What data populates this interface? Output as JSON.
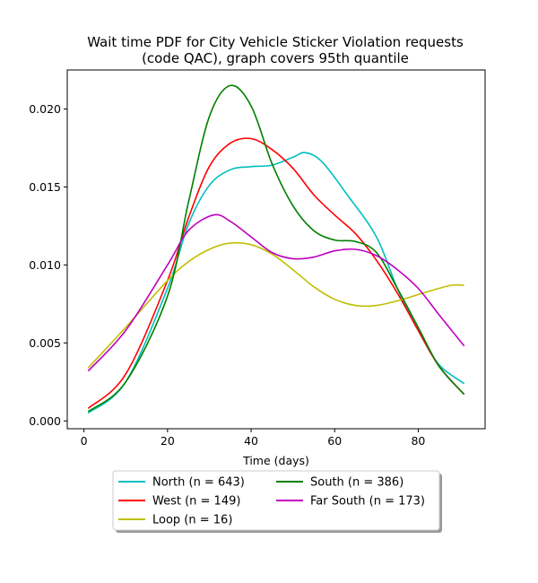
{
  "chart_data": {
    "type": "line",
    "title_line1": "Wait time PDF for City Vehicle Sticker Violation  requests",
    "title_line2": "(code QAC), graph covers 95th quantile",
    "xlabel": "Time (days)",
    "ylabel": "",
    "xlim": [
      -4,
      96
    ],
    "ylim": [
      -0.0005,
      0.0225
    ],
    "xticks": [
      0,
      20,
      40,
      60,
      80
    ],
    "yticks": [
      0.0,
      0.005,
      0.01,
      0.015,
      0.02
    ],
    "ytick_labels": [
      "0.000",
      "0.005",
      "0.010",
      "0.015",
      "0.020"
    ],
    "grid": false,
    "legend_position": "bottom",
    "series": [
      {
        "name": "North (n = 643)",
        "color": "#00bfbf",
        "points": [
          [
            1,
            0.0005
          ],
          [
            10,
            0.0025
          ],
          [
            20,
            0.0085
          ],
          [
            25,
            0.0126
          ],
          [
            30,
            0.0151
          ],
          [
            35,
            0.0161
          ],
          [
            40,
            0.0163
          ],
          [
            45,
            0.0164
          ],
          [
            50,
            0.0169
          ],
          [
            53,
            0.0172
          ],
          [
            57,
            0.0166
          ],
          [
            63,
            0.0145
          ],
          [
            70,
            0.0118
          ],
          [
            75,
            0.0085
          ],
          [
            80,
            0.0058
          ],
          [
            85,
            0.0036
          ],
          [
            91,
            0.0024
          ]
        ]
      },
      {
        "name": "West (n = 149)",
        "color": "#ff0000",
        "points": [
          [
            1,
            0.0008
          ],
          [
            10,
            0.003
          ],
          [
            20,
            0.009
          ],
          [
            25,
            0.013
          ],
          [
            30,
            0.0163
          ],
          [
            35,
            0.0178
          ],
          [
            40,
            0.0181
          ],
          [
            45,
            0.0174
          ],
          [
            50,
            0.0162
          ],
          [
            55,
            0.0145
          ],
          [
            60,
            0.0132
          ],
          [
            65,
            0.012
          ],
          [
            70,
            0.0103
          ],
          [
            75,
            0.0082
          ],
          [
            80,
            0.0058
          ],
          [
            85,
            0.0035
          ],
          [
            91,
            0.0017
          ]
        ]
      },
      {
        "name": "Loop (n = 16)",
        "color": "#bfbf00",
        "points": [
          [
            1,
            0.0034
          ],
          [
            10,
            0.006
          ],
          [
            20,
            0.009
          ],
          [
            25,
            0.0102
          ],
          [
            30,
            0.011
          ],
          [
            35,
            0.0114
          ],
          [
            40,
            0.0113
          ],
          [
            45,
            0.0107
          ],
          [
            50,
            0.0097
          ],
          [
            55,
            0.0086
          ],
          [
            60,
            0.0078
          ],
          [
            65,
            0.0074
          ],
          [
            70,
            0.0074
          ],
          [
            75,
            0.0077
          ],
          [
            80,
            0.0081
          ],
          [
            85,
            0.0085
          ],
          [
            88,
            0.0087
          ],
          [
            91,
            0.0087
          ]
        ]
      },
      {
        "name": "South (n = 386)",
        "color": "#008000",
        "points": [
          [
            1,
            0.0006
          ],
          [
            10,
            0.0025
          ],
          [
            20,
            0.008
          ],
          [
            25,
            0.014
          ],
          [
            30,
            0.0195
          ],
          [
            35,
            0.0215
          ],
          [
            40,
            0.0202
          ],
          [
            45,
            0.0165
          ],
          [
            50,
            0.0138
          ],
          [
            55,
            0.0122
          ],
          [
            60,
            0.0116
          ],
          [
            65,
            0.0115
          ],
          [
            70,
            0.0108
          ],
          [
            75,
            0.0085
          ],
          [
            80,
            0.006
          ],
          [
            85,
            0.0035
          ],
          [
            91,
            0.0017
          ]
        ]
      },
      {
        "name": "Far South (n = 173)",
        "color": "#bf00bf",
        "points": [
          [
            1,
            0.0032
          ],
          [
            10,
            0.0058
          ],
          [
            20,
            0.01
          ],
          [
            25,
            0.0122
          ],
          [
            31,
            0.0132
          ],
          [
            35,
            0.0128
          ],
          [
            40,
            0.0118
          ],
          [
            45,
            0.0108
          ],
          [
            50,
            0.0104
          ],
          [
            55,
            0.0105
          ],
          [
            60,
            0.0109
          ],
          [
            65,
            0.011
          ],
          [
            70,
            0.0106
          ],
          [
            75,
            0.0097
          ],
          [
            80,
            0.0085
          ],
          [
            85,
            0.0068
          ],
          [
            91,
            0.0048
          ]
        ]
      }
    ]
  }
}
